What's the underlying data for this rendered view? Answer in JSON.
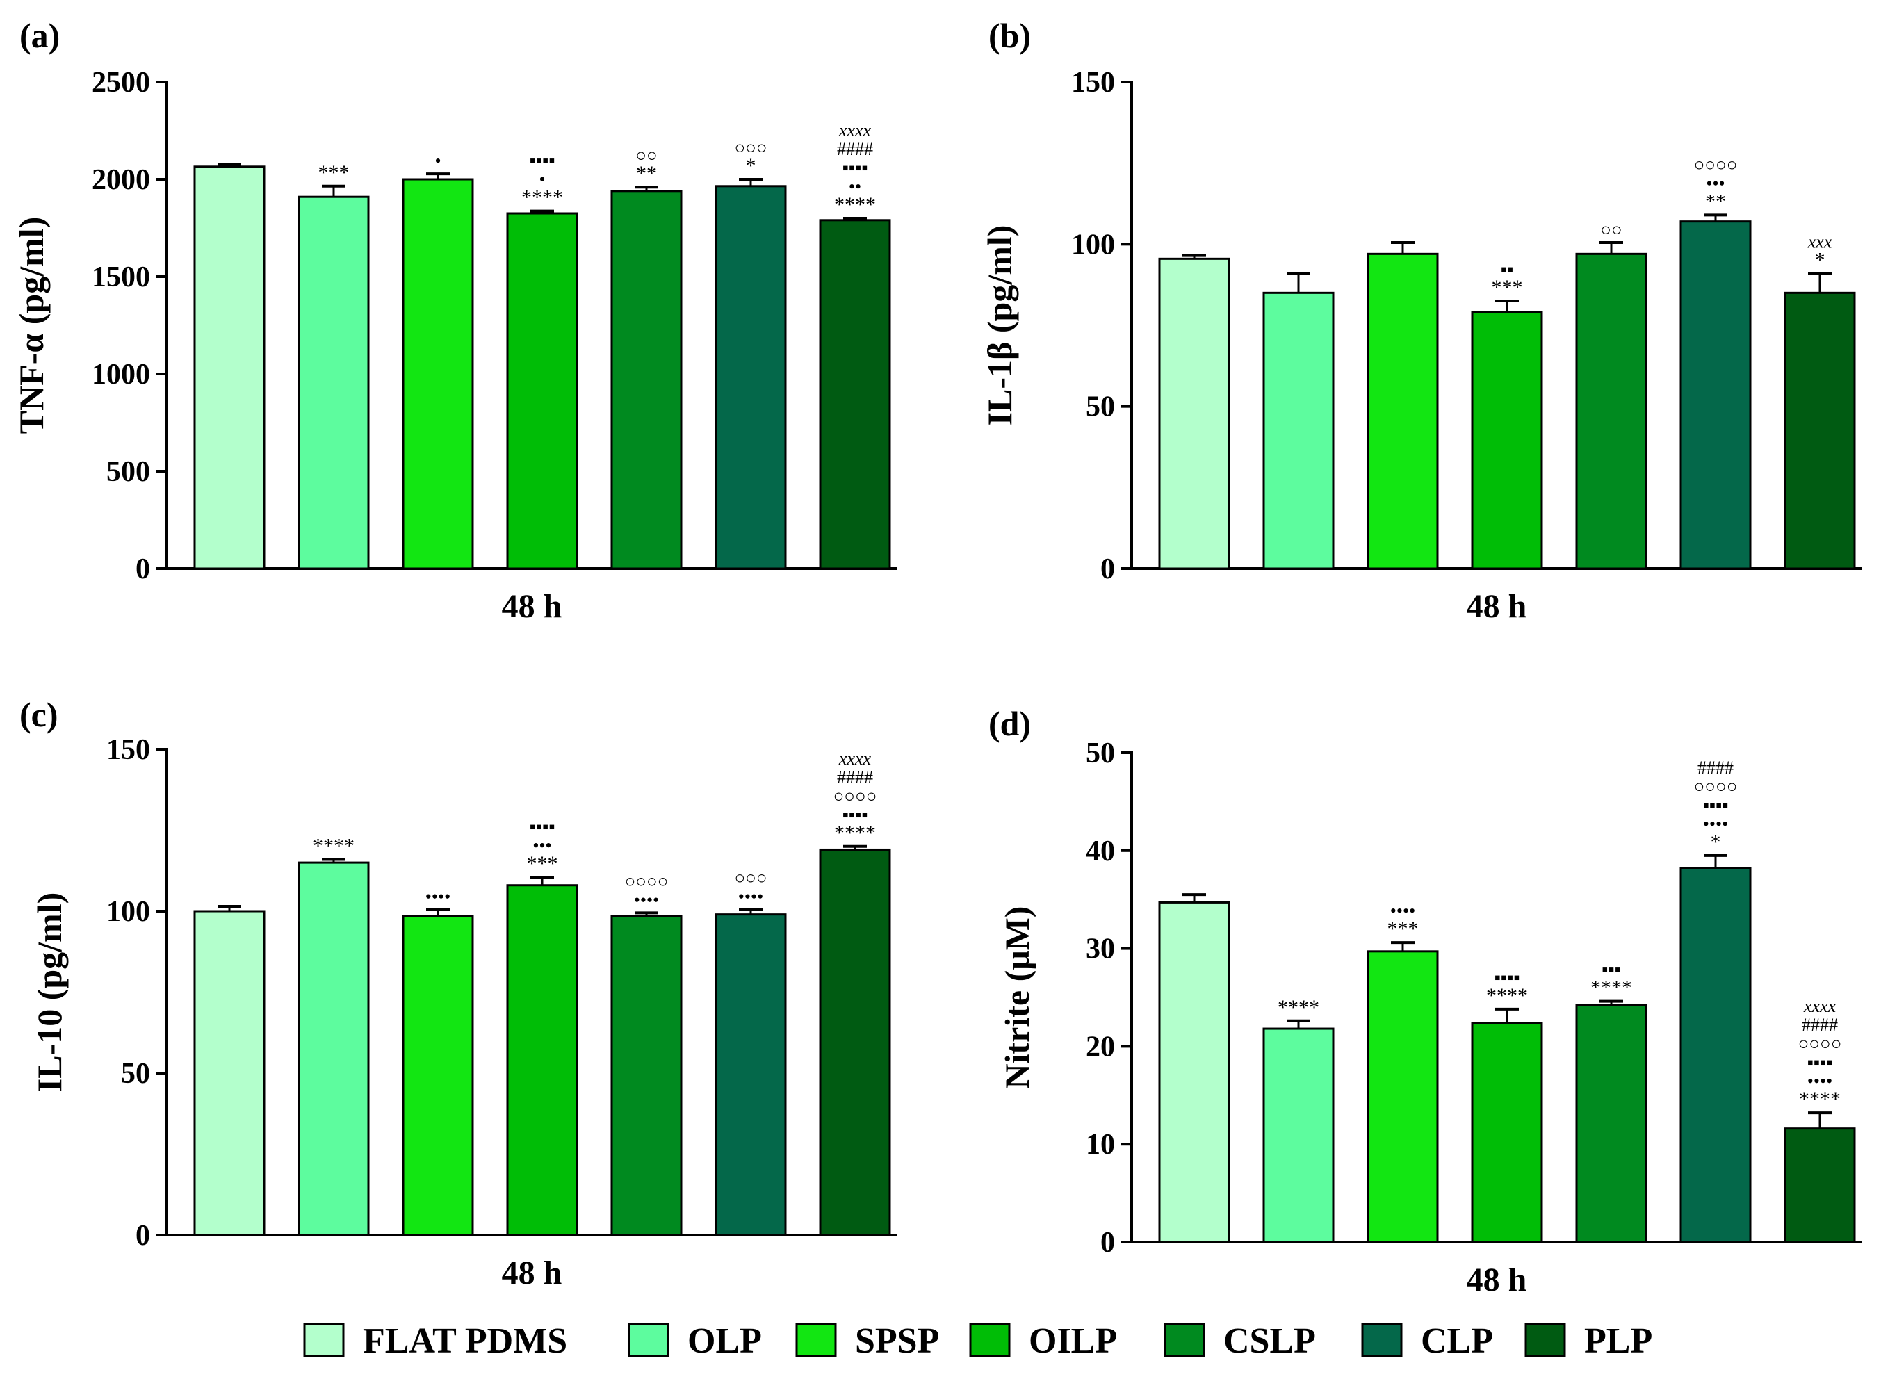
{
  "colors": {
    "FLAT PDMS": "#b3ffcc",
    "OLP": "#5dfc9e",
    "SPSP": "#12e612",
    "OILP": "#00bd06",
    "CSLP": "#008a1f",
    "CLP": "#04684a",
    "PLP": "#005b12"
  },
  "legend": {
    "items": [
      "FLAT PDMS",
      "OLP",
      "SPSP",
      "OILP",
      "CSLP",
      "CLP",
      "PLP"
    ]
  },
  "chart_data": [
    {
      "id": "a",
      "panel_letter": "(a)",
      "type": "bar",
      "title": "",
      "xlabel": "48 h",
      "ylabel": "TNF-α (pg/ml)",
      "ylim": [
        0,
        2500
      ],
      "yticks": [
        0,
        500,
        1000,
        1500,
        2000,
        2500
      ],
      "categories": [
        "FLAT PDMS",
        "OLP",
        "SPSP",
        "OILP",
        "CSLP",
        "CLP",
        "PLP"
      ],
      "values": [
        2065,
        1910,
        2000,
        1825,
        1940,
        1965,
        1790
      ],
      "errors": [
        12,
        55,
        28,
        12,
        20,
        35,
        10
      ],
      "annotations": [
        [],
        [
          "***"
        ],
        [
          "•"
        ],
        [
          "****",
          "•",
          "▪▪▪▪"
        ],
        [
          "**",
          "○○"
        ],
        [
          "*",
          "○○○"
        ],
        [
          "****",
          "••",
          "▪▪▪▪",
          "####",
          "xxxx"
        ]
      ]
    },
    {
      "id": "b",
      "panel_letter": "(b)",
      "type": "bar",
      "title": "",
      "xlabel": "48 h",
      "ylabel": "IL-1β (pg/ml)",
      "ylim": [
        0,
        150
      ],
      "yticks": [
        0,
        50,
        100,
        150
      ],
      "categories": [
        "FLAT PDMS",
        "OLP",
        "SPSP",
        "OILP",
        "CSLP",
        "CLP",
        "PLP"
      ],
      "values": [
        95.5,
        85,
        97,
        79,
        97,
        107,
        85
      ],
      "errors": [
        1,
        6,
        3.5,
        3.5,
        3.5,
        2,
        6
      ],
      "annotations": [
        [],
        [],
        [],
        [
          "***",
          "▪▪"
        ],
        [
          "○○"
        ],
        [
          "**",
          "•••",
          "○○○○"
        ],
        [
          "*",
          "xxx"
        ]
      ]
    },
    {
      "id": "c",
      "panel_letter": "(c)",
      "type": "bar",
      "title": "",
      "xlabel": "48 h",
      "ylabel": "IL-10 (pg/ml)",
      "ylim": [
        0,
        150
      ],
      "yticks": [
        0,
        50,
        100,
        150
      ],
      "categories": [
        "FLAT PDMS",
        "OLP",
        "SPSP",
        "OILP",
        "CSLP",
        "CLP",
        "PLP"
      ],
      "values": [
        100,
        115,
        98.5,
        108,
        98.5,
        99,
        119
      ],
      "errors": [
        1.5,
        1,
        2,
        2.5,
        1,
        1.5,
        1
      ],
      "annotations": [
        [],
        [
          "****"
        ],
        [
          "••••"
        ],
        [
          "***",
          "•••",
          "▪▪▪▪"
        ],
        [
          "••••",
          "○○○○"
        ],
        [
          "••••",
          "○○○"
        ],
        [
          "****",
          "▪▪▪▪",
          "○○○○",
          "####",
          "xxxx"
        ]
      ]
    },
    {
      "id": "d",
      "panel_letter": "(d)",
      "type": "bar",
      "title": "",
      "xlabel": "48 h",
      "ylabel": "Nitrite (μM)",
      "ylim": [
        0,
        50
      ],
      "yticks": [
        0,
        10,
        20,
        30,
        40,
        50
      ],
      "categories": [
        "FLAT PDMS",
        "OLP",
        "SPSP",
        "OILP",
        "CSLP",
        "CLP",
        "PLP"
      ],
      "values": [
        34.7,
        21.8,
        29.7,
        22.4,
        24.2,
        38.2,
        11.6
      ],
      "errors": [
        0.8,
        0.8,
        0.9,
        1.4,
        0.4,
        1.3,
        1.6
      ],
      "annotations": [
        [],
        [
          "****"
        ],
        [
          "***",
          "••••"
        ],
        [
          "****",
          "▪▪▪▪"
        ],
        [
          "****",
          "▪▪▪"
        ],
        [
          "*",
          "••••",
          "▪▪▪▪",
          "○○○○",
          "####"
        ],
        [
          "****",
          "••••",
          "▪▪▪▪",
          "○○○○",
          "####",
          "xxxx"
        ]
      ]
    }
  ]
}
